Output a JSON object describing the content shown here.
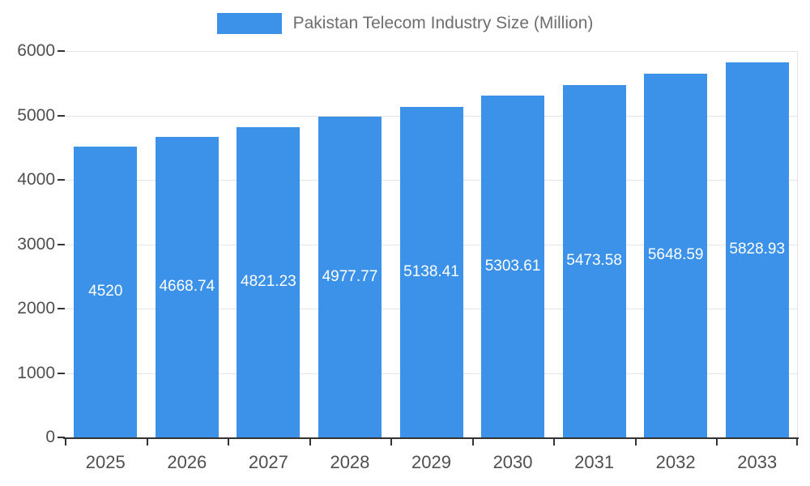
{
  "legend": {
    "label": "Pakistan Telecom Industry Size (Million)",
    "swatch_color": "#3B92E8"
  },
  "chart_data": {
    "type": "bar",
    "title": "Pakistan Telecom Industry Size (Million)",
    "categories": [
      "2025",
      "2026",
      "2027",
      "2028",
      "2029",
      "2030",
      "2031",
      "2032",
      "2033"
    ],
    "values": [
      4520,
      4668.74,
      4821.23,
      4977.77,
      5138.41,
      5303.61,
      5473.58,
      5648.59,
      5828.93
    ],
    "value_labels": [
      "4520",
      "4668.74",
      "4821.23",
      "4977.77",
      "5138.41",
      "5303.61",
      "5473.58",
      "5648.59",
      "5828.93"
    ],
    "xlabel": "",
    "ylabel": "",
    "ylim": [
      0,
      6000
    ],
    "ytick_step": 1000,
    "ytick_labels": [
      "0",
      "1000",
      "2000",
      "3000",
      "4000",
      "5000",
      "6000"
    ],
    "grid": true,
    "legend_position": "top",
    "bar_color": "#3B92E8",
    "value_label_color": "#ffffff",
    "axis_label_color": "#4f4f4f",
    "gridline_color": "#e3e3e3"
  }
}
